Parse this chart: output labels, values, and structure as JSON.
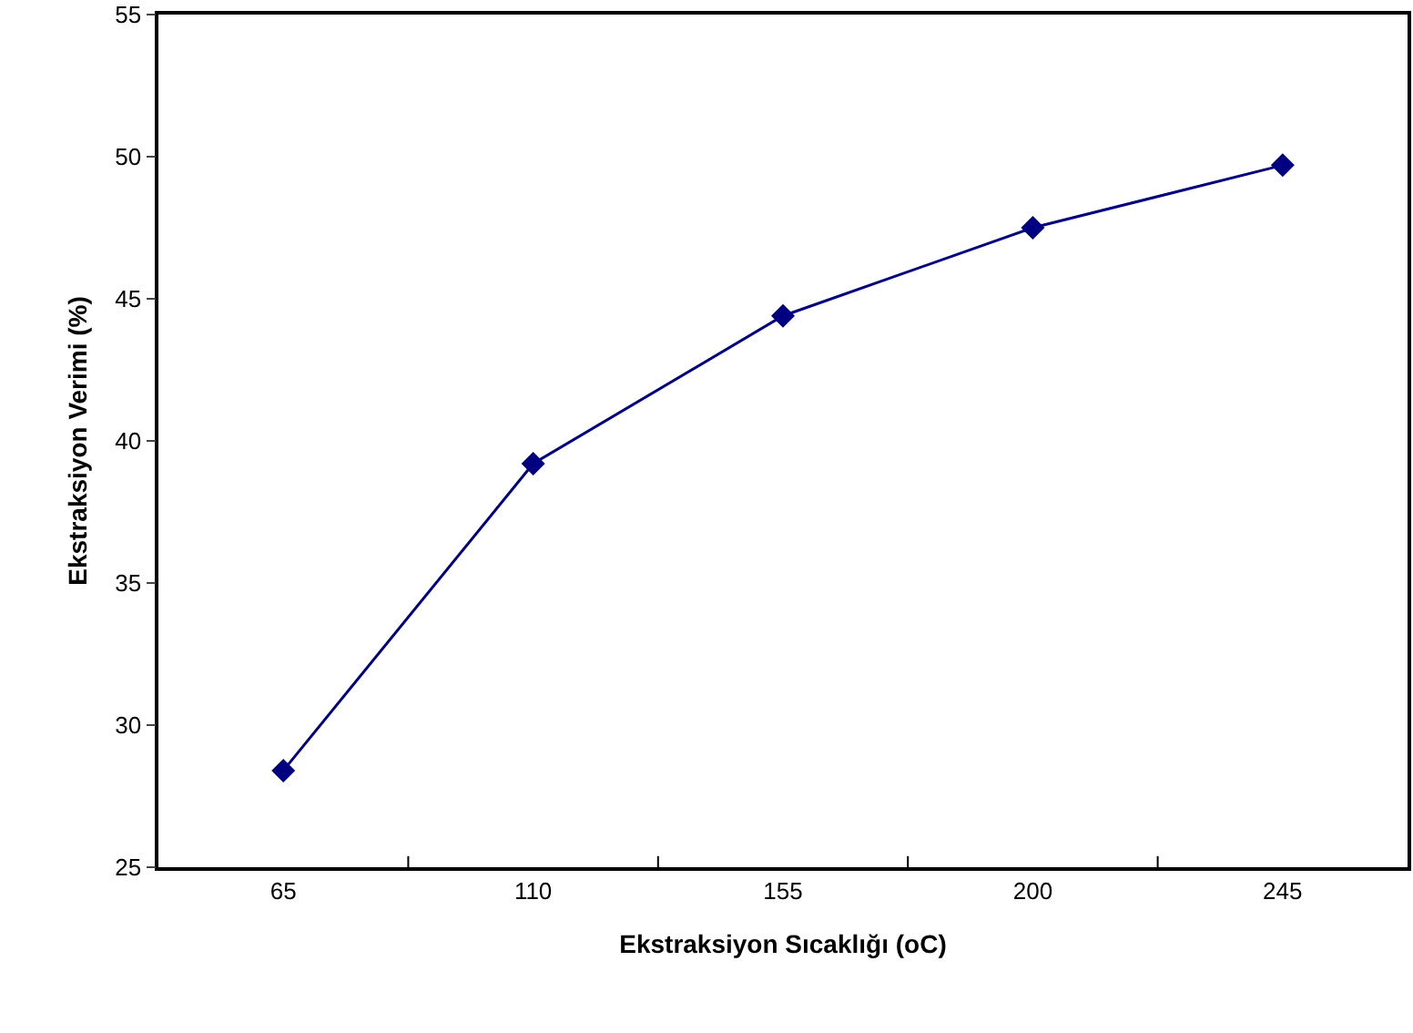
{
  "chart_data": {
    "type": "line",
    "xlabel": "Ekstraksiyon Sıcaklığı (oC)",
    "ylabel": "Ekstraksiyon Verimi (%)",
    "categories": [
      "65",
      "110",
      "155",
      "200",
      "245"
    ],
    "series": [
      {
        "color": "#000080",
        "values": [
          28.4,
          39.2,
          44.4,
          47.5,
          49.7
        ]
      }
    ],
    "ylim": [
      25,
      55
    ],
    "yticks": [
      25,
      30,
      35,
      40,
      45,
      50,
      55
    ],
    "marker": "diamond",
    "line_style": "solid"
  }
}
